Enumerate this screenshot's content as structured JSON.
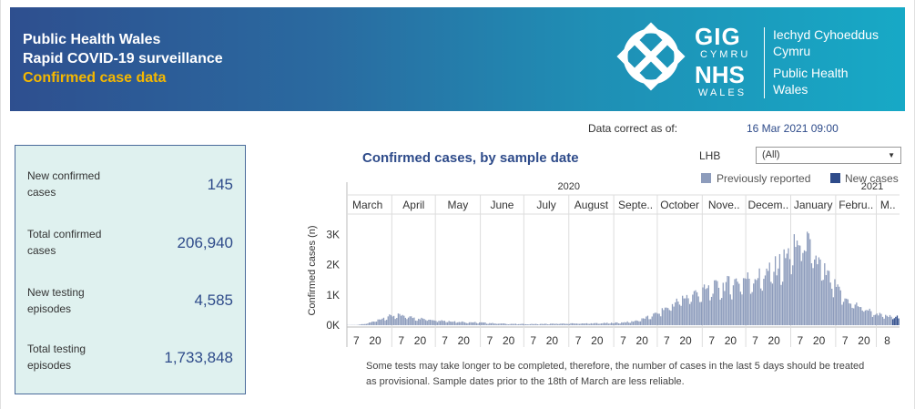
{
  "header": {
    "line1": "Public Health Wales",
    "line2": "Rapid COVID-19 surveillance",
    "line3": "Confirmed case data",
    "logo": {
      "gig": "GIG",
      "cymru": "CYMRU",
      "nhs": "NHS",
      "wales": "WALES",
      "org_cy_1": "Iechyd Cyhoeddus",
      "org_cy_2": "Cymru",
      "org_en_1": "Public Health",
      "org_en_2": "Wales"
    }
  },
  "data_correct": {
    "label": "Data correct as of:",
    "value": "16 Mar 2021 09:00"
  },
  "stats": [
    {
      "label": "New confirmed cases",
      "value": "145"
    },
    {
      "label": "Total confirmed cases",
      "value": "206,940"
    },
    {
      "label": "New testing episodes",
      "value": "4,585"
    },
    {
      "label": "Total testing episodes",
      "value": "1,733,848"
    }
  ],
  "filter": {
    "label": "LHB",
    "selected": "(All)"
  },
  "legend": [
    {
      "label": "Previously reported",
      "color": "#8d9cbc"
    },
    {
      "label": "New cases",
      "color": "#2e4b8a"
    }
  ],
  "notes": {
    "line1": "Some tests may take longer to be completed, therefore, the number of cases in the last 5 days should be treated",
    "line2": "as provisional. Sample dates prior to the 18th of March are less reliable."
  },
  "chart_data": {
    "type": "bar",
    "title": "Confirmed cases, by sample date",
    "ylabel": "Confirmed cases (n)",
    "yticks": [
      "0K",
      "1K",
      "2K",
      "3K"
    ],
    "ylim": [
      0,
      3500
    ],
    "years": [
      {
        "label": "2020",
        "months": 10
      },
      {
        "label": "2021",
        "months": 3
      }
    ],
    "months": [
      "March",
      "April",
      "May",
      "June",
      "July",
      "August",
      "Septe..",
      "October",
      "Nove..",
      "Decem..",
      "January",
      "Febru..",
      "M.."
    ],
    "month_days": [
      31,
      30,
      31,
      30,
      31,
      31,
      30,
      31,
      30,
      31,
      31,
      28,
      16
    ],
    "day_ticks": [
      "7",
      "20"
    ],
    "last_tick": "8",
    "weekly_avg": [
      5,
      10,
      60,
      180,
      300,
      330,
      280,
      230,
      200,
      170,
      140,
      120,
      100,
      90,
      70,
      55,
      45,
      40,
      38,
      40,
      45,
      50,
      55,
      60,
      60,
      65,
      75,
      90,
      120,
      200,
      320,
      500,
      700,
      900,
      1050,
      1150,
      1250,
      1350,
      1450,
      1550,
      1600,
      1700,
      1900,
      2200,
      2600,
      2900,
      2300,
      1800,
      1300,
      900,
      700,
      550,
      400,
      300,
      280,
      250
    ],
    "series": [
      {
        "name": "Previously reported",
        "color": "#8d9cbc"
      },
      {
        "name": "New cases",
        "color": "#2e4b8a"
      }
    ]
  }
}
